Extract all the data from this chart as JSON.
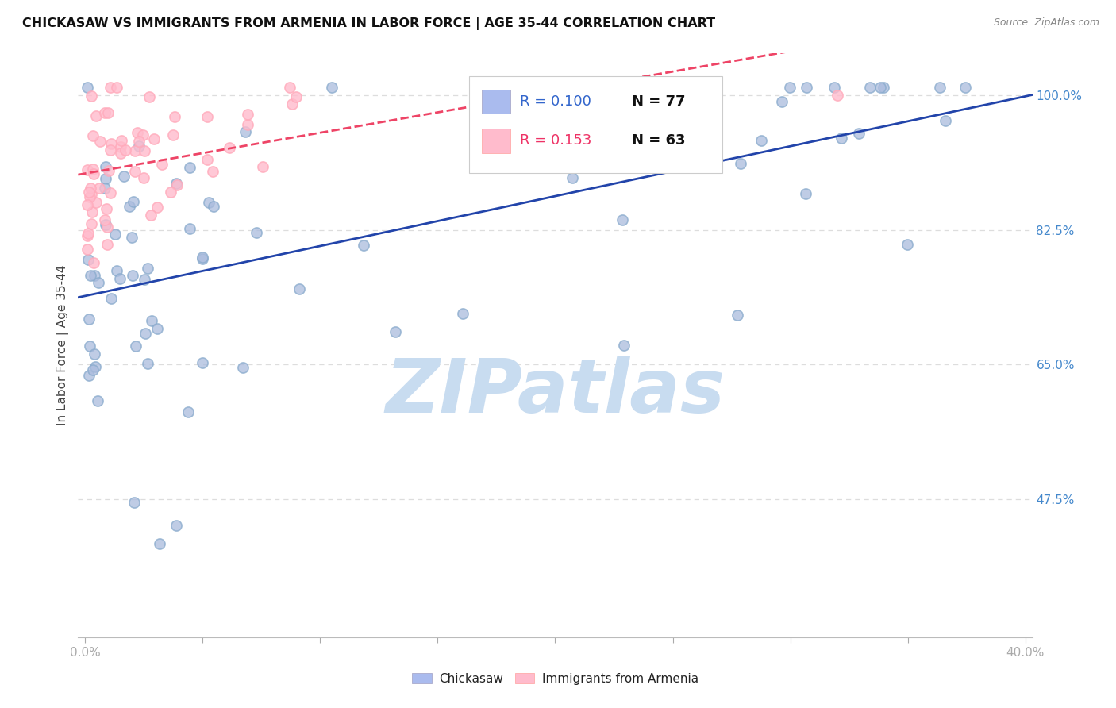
{
  "title": "CHICKASAW VS IMMIGRANTS FROM ARMENIA IN LABOR FORCE | AGE 35-44 CORRELATION CHART",
  "source": "Source: ZipAtlas.com",
  "ylabel": "In Labor Force | Age 35-44",
  "xlim": [
    -0.003,
    0.403
  ],
  "ylim": [
    0.295,
    1.055
  ],
  "xticks": [
    0.0,
    0.05,
    0.1,
    0.15,
    0.2,
    0.25,
    0.3,
    0.35,
    0.4
  ],
  "yticks": [
    0.475,
    0.65,
    0.825,
    1.0
  ],
  "yticklabels": [
    "47.5%",
    "65.0%",
    "82.5%",
    "100.0%"
  ],
  "grid_color": "#dddddd",
  "blue_face_color": "#aabbdd",
  "blue_edge_color": "#88aacc",
  "pink_face_color": "#ffbbcc",
  "pink_edge_color": "#ffaabb",
  "blue_line_color": "#2244aa",
  "pink_line_color": "#ee4466",
  "legend_R_blue": "R = 0.100",
  "legend_N_blue": "N = 77",
  "legend_R_pink": "R = 0.153",
  "legend_N_pink": "N = 63",
  "legend_color_blue": "#3366cc",
  "legend_color_pink": "#ee3366",
  "watermark": "ZIPatlas",
  "watermark_color": "#c8dcf0",
  "axis_tick_color": "#4488cc",
  "title_color": "#111111",
  "source_color": "#888888",
  "legend_patch_blue": "#aabbee",
  "legend_patch_pink": "#ffbbcc"
}
